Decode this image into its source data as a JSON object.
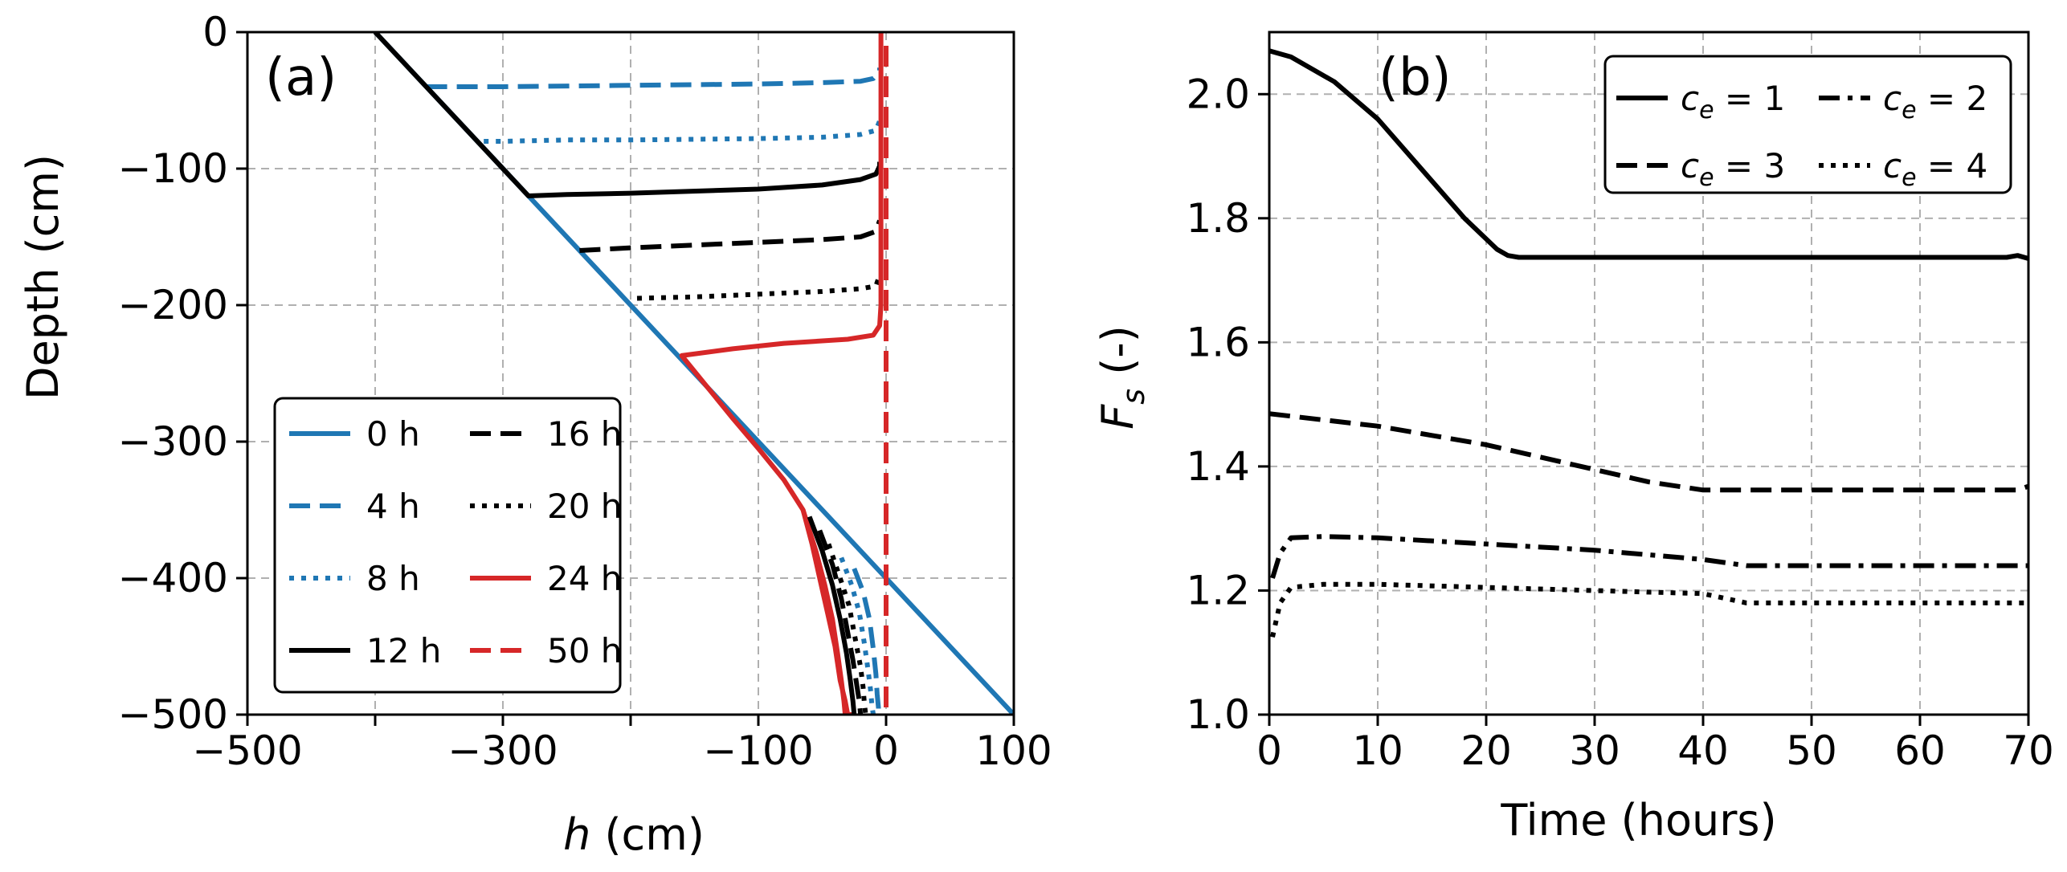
{
  "chart_data": [
    {
      "panel": "(a)",
      "type": "line",
      "xlabel_symbol": "h",
      "xlabel_unit": "(cm)",
      "ylabel": "Depth (cm)",
      "xlim": [
        -500,
        100
      ],
      "ylim": [
        -500,
        0
      ],
      "xticks": [
        -500,
        -300,
        -100,
        0,
        100
      ],
      "xtick_labels": [
        "−500",
        "−300",
        "−100",
        "0",
        "100"
      ],
      "yticks": [
        0,
        -100,
        -200,
        -300,
        -400,
        -500
      ],
      "ytick_labels": [
        "0",
        "−100",
        "−200",
        "−300",
        "−400",
        "−500"
      ],
      "grid": true,
      "legend_position": "lower-left",
      "colors": {
        "blue": "#1f77b4",
        "black": "#000000",
        "red": "#d62728",
        "grid": "#b0b0b0"
      },
      "series": [
        {
          "name": "0 h",
          "color": "#1f77b4",
          "dash": "solid",
          "x": [
            -400,
            100
          ],
          "y": [
            0,
            -500
          ]
        },
        {
          "name": "4 h",
          "color": "#1f77b4",
          "dash": "dashed",
          "x": [
            -360,
            -340,
            -300,
            -200,
            -100,
            -50,
            -20,
            -10,
            -6,
            -5,
            -5
          ],
          "y": [
            -40,
            -40,
            -40,
            -39,
            -38,
            -37,
            -36,
            -34,
            -30,
            -28,
            -26
          ]
        },
        {
          "name": "8 h",
          "color": "#1f77b4",
          "dash": "dotted",
          "x": [
            -315,
            -300,
            -250,
            -200,
            -100,
            -50,
            -20,
            -8,
            -5
          ],
          "y": [
            -80,
            -80,
            -79,
            -79,
            -78,
            -77,
            -75,
            -72,
            -65
          ]
        },
        {
          "name": "12 h",
          "color": "#000000",
          "dash": "solid",
          "x": [
            -400,
            -280,
            -250,
            -200,
            -100,
            -50,
            -20,
            -8,
            -6,
            -5,
            -5
          ],
          "y": [
            0,
            -120,
            -119,
            -118,
            -115,
            -112,
            -108,
            -104,
            -100,
            -98,
            -95
          ]
        },
        {
          "name": "16 h",
          "color": "#000000",
          "dash": "dashed",
          "x": [
            -240,
            -200,
            -150,
            -100,
            -50,
            -20,
            -8,
            -5
          ],
          "y": [
            -160,
            -158,
            -156,
            -154,
            -152,
            -150,
            -146,
            -138
          ]
        },
        {
          "name": "20 h",
          "color": "#000000",
          "dash": "dotted",
          "x": [
            -195,
            -150,
            -100,
            -50,
            -20,
            -8,
            -5
          ],
          "y": [
            -195,
            -194,
            -192,
            -190,
            -188,
            -186,
            -178
          ]
        },
        {
          "name": "24 h",
          "color": "#d62728",
          "dash": "solid",
          "x": [
            -4,
            -4,
            -4,
            -5,
            -10,
            -30,
            -80,
            -120,
            -160,
            -160,
            -140,
            -120,
            -100,
            -80,
            -65,
            -58,
            -52,
            -46,
            -40,
            -36,
            -32,
            -30,
            -28,
            -27
          ],
          "y": [
            0,
            -100,
            -200,
            -215,
            -222,
            -225,
            -228,
            -232,
            -237,
            -237,
            -260,
            -283,
            -305,
            -328,
            -350,
            -375,
            -400,
            -425,
            -450,
            -475,
            -490,
            -500,
            -500,
            -500
          ]
        },
        {
          "name": "24 h lower tail",
          "legend": false,
          "color": "#d62728",
          "dash": "solid",
          "x": [
            -65,
            -55,
            -48,
            -42,
            -38,
            -35,
            -33,
            -32
          ],
          "y": [
            -350,
            -380,
            -405,
            -430,
            -455,
            -475,
            -490,
            -500
          ]
        },
        {
          "name": "12 h lower",
          "legend": false,
          "color": "#000000",
          "dash": "solid",
          "x": [
            -60,
            -50,
            -42,
            -36,
            -31,
            -28,
            -26,
            -25
          ],
          "y": [
            -355,
            -380,
            -405,
            -430,
            -455,
            -475,
            -490,
            -500
          ]
        },
        {
          "name": "16 h lower",
          "legend": false,
          "color": "#000000",
          "dash": "dashed",
          "x": [
            -52,
            -42,
            -35,
            -30,
            -26,
            -23,
            -21,
            -20
          ],
          "y": [
            -365,
            -390,
            -415,
            -440,
            -460,
            -478,
            -490,
            -500
          ]
        },
        {
          "name": "20 h lower",
          "legend": false,
          "color": "#000000",
          "dash": "dotted",
          "x": [
            -45,
            -36,
            -29,
            -24,
            -20,
            -18,
            -17,
            -16
          ],
          "y": [
            -375,
            -400,
            -420,
            -445,
            -465,
            -480,
            -492,
            -500
          ]
        },
        {
          "name": "8 h lower",
          "legend": false,
          "color": "#1f77b4",
          "dash": "dotted",
          "x": [
            -35,
            -27,
            -21,
            -17,
            -14,
            -12,
            -11,
            -10
          ],
          "y": [
            -385,
            -405,
            -425,
            -448,
            -468,
            -483,
            -494,
            -500
          ]
        },
        {
          "name": "4 h lower",
          "legend": false,
          "color": "#1f77b4",
          "dash": "dashed",
          "x": [
            -25,
            -18,
            -13,
            -10,
            -8,
            -7,
            -6,
            -6
          ],
          "y": [
            -393,
            -410,
            -430,
            -452,
            -470,
            -485,
            -495,
            -500
          ]
        },
        {
          "name": "50 h",
          "color": "#d62728",
          "dash": "dashed",
          "x": [
            0,
            0
          ],
          "y": [
            -10,
            -500
          ]
        }
      ],
      "legend": [
        {
          "label": "0 h",
          "color": "#1f77b4",
          "dash": "solid"
        },
        {
          "label": "4 h",
          "color": "#1f77b4",
          "dash": "dashed"
        },
        {
          "label": "8 h",
          "color": "#1f77b4",
          "dash": "dotted"
        },
        {
          "label": "12 h",
          "color": "#000000",
          "dash": "solid"
        },
        {
          "label": "16 h",
          "color": "#000000",
          "dash": "dashed"
        },
        {
          "label": "20 h",
          "color": "#000000",
          "dash": "dotted"
        },
        {
          "label": "24 h",
          "color": "#d62728",
          "dash": "solid"
        },
        {
          "label": "50 h",
          "color": "#d62728",
          "dash": "dashed"
        }
      ]
    },
    {
      "panel": "(b)",
      "type": "line",
      "xlabel": "Time (hours)",
      "ylabel_symbol": "F",
      "ylabel_sub": "s",
      "ylabel_unit": "(-)",
      "xlim": [
        0,
        70
      ],
      "ylim": [
        1.0,
        2.1
      ],
      "xticks": [
        0,
        10,
        20,
        30,
        40,
        50,
        60,
        70
      ],
      "xtick_labels": [
        "0",
        "10",
        "20",
        "30",
        "40",
        "50",
        "60",
        "70"
      ],
      "yticks": [
        1.0,
        1.2,
        1.4,
        1.6,
        1.8,
        2.0
      ],
      "ytick_labels": [
        "1.0",
        "1.2",
        "1.4",
        "1.6",
        "1.8",
        "2.0"
      ],
      "grid": true,
      "legend_position": "top-right",
      "series": [
        {
          "name": "c_e = 1",
          "color": "#000000",
          "dash": "solid",
          "x": [
            0,
            2,
            6,
            10,
            14,
            18,
            21,
            22,
            23,
            30,
            40,
            50,
            60,
            68,
            69,
            70
          ],
          "y": [
            2.07,
            2.06,
            2.02,
            1.96,
            1.88,
            1.8,
            1.75,
            1.74,
            1.737,
            1.737,
            1.737,
            1.737,
            1.737,
            1.737,
            1.74,
            1.735
          ]
        },
        {
          "name": "c_e = 3",
          "color": "#000000",
          "dash": "dashed",
          "x": [
            0,
            5,
            10,
            15,
            20,
            25,
            30,
            35,
            40,
            50,
            60,
            69,
            70
          ],
          "y": [
            1.485,
            1.475,
            1.465,
            1.45,
            1.435,
            1.415,
            1.395,
            1.375,
            1.362,
            1.362,
            1.362,
            1.362,
            1.368
          ]
        },
        {
          "name": "c_e = 2",
          "color": "#000000",
          "dash": "dashdot",
          "x": [
            0.3,
            1,
            2,
            5,
            10,
            20,
            30,
            40,
            44,
            50,
            60,
            70
          ],
          "y": [
            1.22,
            1.26,
            1.285,
            1.287,
            1.285,
            1.275,
            1.265,
            1.25,
            1.24,
            1.24,
            1.24,
            1.24
          ]
        },
        {
          "name": "c_e = 4",
          "color": "#000000",
          "dash": "dotted",
          "x": [
            0.3,
            1,
            2,
            5,
            10,
            20,
            30,
            40,
            44,
            50,
            60,
            70
          ],
          "y": [
            1.125,
            1.18,
            1.205,
            1.21,
            1.21,
            1.205,
            1.2,
            1.195,
            1.18,
            1.18,
            1.18,
            1.18
          ]
        }
      ],
      "legend": [
        {
          "symbol": "c",
          "sub": "e",
          "eq": "= 1",
          "dash": "solid"
        },
        {
          "symbol": "c",
          "sub": "e",
          "eq": "= 3",
          "dash": "dashed"
        },
        {
          "symbol": "c",
          "sub": "e",
          "eq": "= 2",
          "dash": "dashdot"
        },
        {
          "symbol": "c",
          "sub": "e",
          "eq": "= 4",
          "dash": "dotted"
        }
      ]
    }
  ]
}
